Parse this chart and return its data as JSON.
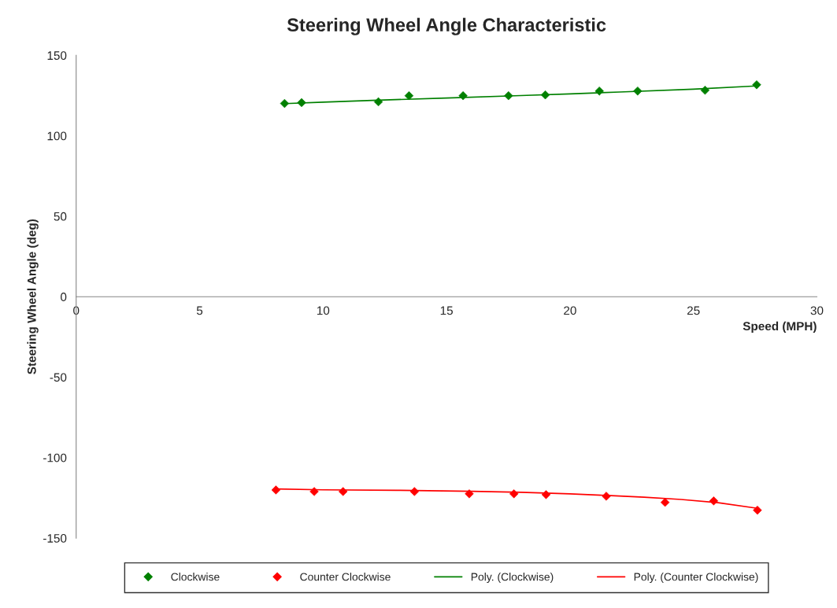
{
  "chart_data": {
    "type": "scatter",
    "title": "Steering Wheel Angle Characteristic",
    "xlabel": "Speed (MPH)",
    "ylabel": "Steering Wheel Angle (deg)",
    "xlim": [
      0,
      30
    ],
    "xticks": [
      0,
      5,
      10,
      15,
      20,
      25,
      30
    ],
    "ylim": [
      -150,
      150
    ],
    "yticks": [
      -150,
      -100,
      -50,
      0,
      50,
      100,
      150
    ],
    "grid": false,
    "legend": "bottom",
    "marker": "diamond",
    "series": [
      {
        "name": "Clockwise",
        "color": "#008000",
        "x": [
          8.44,
          9.13,
          12.24,
          13.48,
          15.67,
          17.51,
          19.0,
          21.19,
          22.74,
          25.47,
          27.56
        ],
        "values": [
          120.1,
          120.6,
          121.1,
          124.9,
          124.9,
          124.9,
          125.4,
          127.8,
          127.8,
          128.3,
          131.7
        ]
      },
      {
        "name": "Counter Clockwise",
        "color": "#ff0000",
        "x": [
          8.09,
          9.64,
          10.81,
          13.7,
          15.92,
          17.73,
          19.03,
          21.47,
          23.85,
          25.82,
          27.59
        ],
        "values": [
          -120.1,
          -121.1,
          -121.1,
          -121.1,
          -122.5,
          -122.5,
          -123.0,
          -124.0,
          -127.8,
          -126.9,
          -132.7
        ]
      },
      {
        "name": "Poly. (Clockwise)",
        "type": "line",
        "marker": "none",
        "color": "#008000",
        "x": [
          8.44,
          10,
          12,
          15,
          18,
          20,
          22,
          25,
          27.56
        ],
        "values": [
          120.0,
          120.9,
          122.0,
          123.5,
          125.0,
          126.0,
          127.2,
          129.0,
          131.0
        ]
      },
      {
        "name": "Poly. (Counter Clockwise)",
        "type": "line",
        "marker": "none",
        "color": "#ff0000",
        "x": [
          8.09,
          10,
          13,
          16,
          18,
          20,
          21.5,
          23,
          24.5,
          26,
          27.59
        ],
        "values": [
          -119.5,
          -120.0,
          -120.3,
          -120.9,
          -121.5,
          -122.5,
          -123.5,
          -124.6,
          -126.0,
          -128.0,
          -131.5
        ]
      }
    ]
  }
}
